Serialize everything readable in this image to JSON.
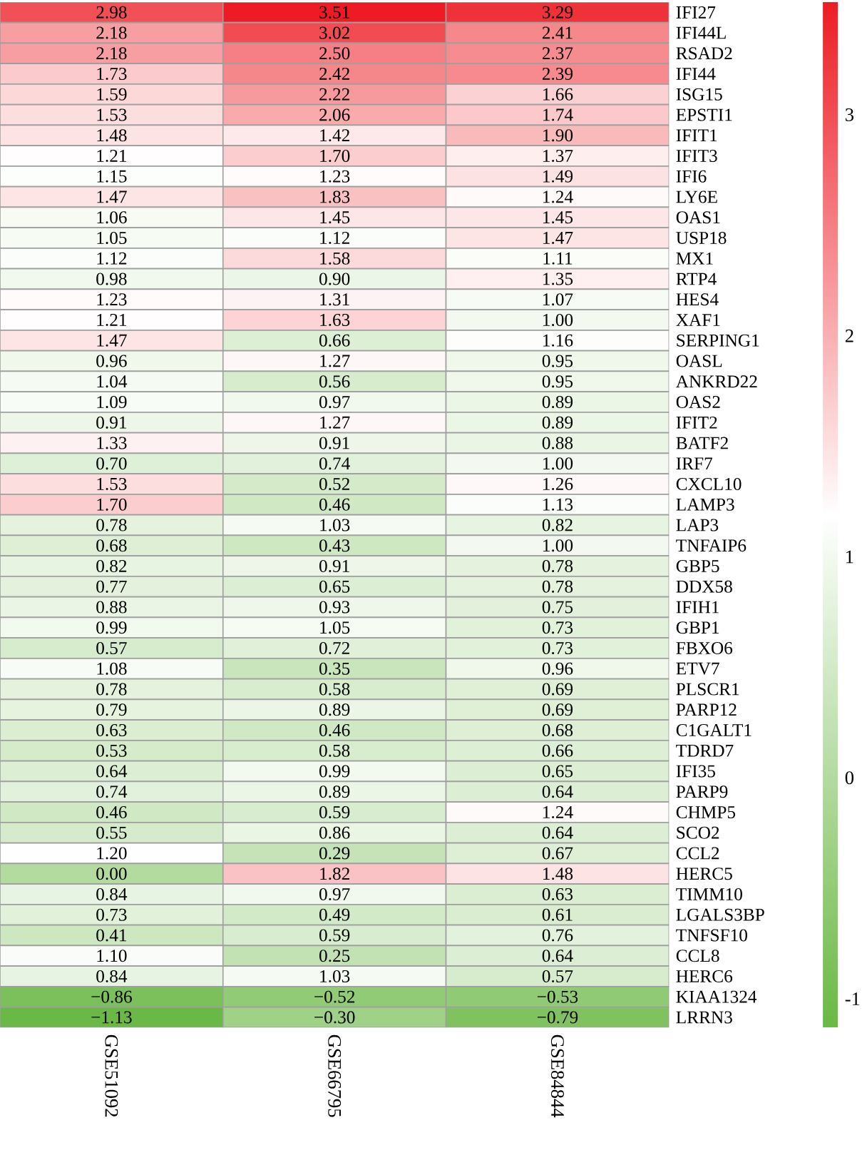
{
  "chart_data": {
    "type": "heatmap",
    "categories": [
      "GSE51092",
      "GSE66795",
      "GSE84844"
    ],
    "y_categories": [
      "IFI27",
      "IFI44L",
      "RSAD2",
      "IFI44",
      "ISG15",
      "EPSTI1",
      "IFIT1",
      "IFIT3",
      "IFI6",
      "LY6E",
      "OAS1",
      "USP18",
      "MX1",
      "RTP4",
      "HES4",
      "XAF1",
      "SERPING1",
      "OASL",
      "ANKRD22",
      "OAS2",
      "IFIT2",
      "BATF2",
      "IRF7",
      "CXCL10",
      "LAMP3",
      "LAP3",
      "TNFAIP6",
      "GBP5",
      "DDX58",
      "IFIH1",
      "GBP1",
      "FBXO6",
      "ETV7",
      "PLSCR1",
      "PARP12",
      "C1GALT1",
      "TDRD7",
      "IFI35",
      "PARP9",
      "CHMP5",
      "SCO2",
      "CCL2",
      "HERC5",
      "TIMM10",
      "LGALS3BP",
      "TNFSF10",
      "CCL8",
      "HERC6",
      "KIAA1324",
      "LRRN3"
    ],
    "cells": [
      [
        2.98,
        3.51,
        3.29
      ],
      [
        2.18,
        3.02,
        2.41
      ],
      [
        2.18,
        2.5,
        2.37
      ],
      [
        1.73,
        2.42,
        2.39
      ],
      [
        1.59,
        2.22,
        1.66
      ],
      [
        1.53,
        2.06,
        1.74
      ],
      [
        1.48,
        1.42,
        1.9
      ],
      [
        1.21,
        1.7,
        1.37
      ],
      [
        1.15,
        1.23,
        1.49
      ],
      [
        1.47,
        1.83,
        1.24
      ],
      [
        1.06,
        1.45,
        1.45
      ],
      [
        1.05,
        1.12,
        1.47
      ],
      [
        1.12,
        1.58,
        1.11
      ],
      [
        0.98,
        0.9,
        1.35
      ],
      [
        1.23,
        1.31,
        1.07
      ],
      [
        1.21,
        1.63,
        1.0
      ],
      [
        1.47,
        0.66,
        1.16
      ],
      [
        0.96,
        1.27,
        0.95
      ],
      [
        1.04,
        0.56,
        0.95
      ],
      [
        1.09,
        0.97,
        0.89
      ],
      [
        0.91,
        1.27,
        0.89
      ],
      [
        1.33,
        0.91,
        0.88
      ],
      [
        0.7,
        0.74,
        1.0
      ],
      [
        1.53,
        0.52,
        1.26
      ],
      [
        1.7,
        0.46,
        1.13
      ],
      [
        0.78,
        1.03,
        0.82
      ],
      [
        0.68,
        0.43,
        1.0
      ],
      [
        0.82,
        0.91,
        0.78
      ],
      [
        0.77,
        0.65,
        0.78
      ],
      [
        0.88,
        0.93,
        0.75
      ],
      [
        0.99,
        1.05,
        0.73
      ],
      [
        0.57,
        0.72,
        0.73
      ],
      [
        1.08,
        0.35,
        0.96
      ],
      [
        0.78,
        0.58,
        0.69
      ],
      [
        0.79,
        0.89,
        0.69
      ],
      [
        0.63,
        0.46,
        0.68
      ],
      [
        0.53,
        0.58,
        0.66
      ],
      [
        0.64,
        0.99,
        0.65
      ],
      [
        0.74,
        0.89,
        0.64
      ],
      [
        0.46,
        0.59,
        1.24
      ],
      [
        0.55,
        0.86,
        0.64
      ],
      [
        1.2,
        0.29,
        0.67
      ],
      [
        0.0,
        1.82,
        1.48
      ],
      [
        0.84,
        0.97,
        0.63
      ],
      [
        0.73,
        0.49,
        0.61
      ],
      [
        0.41,
        0.59,
        0.76
      ],
      [
        1.1,
        0.25,
        0.64
      ],
      [
        0.84,
        1.03,
        0.57
      ],
      [
        -0.86,
        -0.52,
        -0.53
      ],
      [
        -1.13,
        -0.3,
        -0.79
      ]
    ],
    "cell_labels": [
      [
        "2.98",
        "3.51",
        "3.29"
      ],
      [
        "2.18",
        "3.02",
        "2.41"
      ],
      [
        "2.18",
        "2.50",
        "2.37"
      ],
      [
        "1.73",
        "2.42",
        "2.39"
      ],
      [
        "1.59",
        "2.22",
        "1.66"
      ],
      [
        "1.53",
        "2.06",
        "1.74"
      ],
      [
        "1.48",
        "1.42",
        "1.90"
      ],
      [
        "1.21",
        "1.70",
        "1.37"
      ],
      [
        "1.15",
        "1.23",
        "1.49"
      ],
      [
        "1.47",
        "1.83",
        "1.24"
      ],
      [
        "1.06",
        "1.45",
        "1.45"
      ],
      [
        "1.05",
        "1.12",
        "1.47"
      ],
      [
        "1.12",
        "1.58",
        "1.11"
      ],
      [
        "0.98",
        "0.90",
        "1.35"
      ],
      [
        "1.23",
        "1.31",
        "1.07"
      ],
      [
        "1.21",
        "1.63",
        "1.00"
      ],
      [
        "1.47",
        "0.66",
        "1.16"
      ],
      [
        "0.96",
        "1.27",
        "0.95"
      ],
      [
        "1.04",
        "0.56",
        "0.95"
      ],
      [
        "1.09",
        "0.97",
        "0.89"
      ],
      [
        "0.91",
        "1.27",
        "0.89"
      ],
      [
        "1.33",
        "0.91",
        "0.88"
      ],
      [
        "0.70",
        "0.74",
        "1.00"
      ],
      [
        "1.53",
        "0.52",
        "1.26"
      ],
      [
        "1.70",
        "0.46",
        "1.13"
      ],
      [
        "0.78",
        "1.03",
        "0.82"
      ],
      [
        "0.68",
        "0.43",
        "1.00"
      ],
      [
        "0.82",
        "0.91",
        "0.78"
      ],
      [
        "0.77",
        "0.65",
        "0.78"
      ],
      [
        "0.88",
        "0.93",
        "0.75"
      ],
      [
        "0.99",
        "1.05",
        "0.73"
      ],
      [
        "0.57",
        "0.72",
        "0.73"
      ],
      [
        "1.08",
        "0.35",
        "0.96"
      ],
      [
        "0.78",
        "0.58",
        "0.69"
      ],
      [
        "0.79",
        "0.89",
        "0.69"
      ],
      [
        "0.63",
        "0.46",
        "0.68"
      ],
      [
        "0.53",
        "0.58",
        "0.66"
      ],
      [
        "0.64",
        "0.99",
        "0.65"
      ],
      [
        "0.74",
        "0.89",
        "0.64"
      ],
      [
        "0.46",
        "0.59",
        "1.24"
      ],
      [
        "0.55",
        "0.86",
        "0.64"
      ],
      [
        "1.20",
        "0.29",
        "0.67"
      ],
      [
        "0.00",
        "1.82",
        "1.48"
      ],
      [
        "0.84",
        "0.97",
        "0.63"
      ],
      [
        "0.73",
        "0.49",
        "0.61"
      ],
      [
        "0.41",
        "0.59",
        "0.76"
      ],
      [
        "1.10",
        "0.25",
        "0.64"
      ],
      [
        "0.84",
        "1.03",
        "0.57"
      ],
      [
        "−0.86",
        "−0.52",
        "−0.53"
      ],
      [
        "−1.13",
        "−0.30",
        "−0.79"
      ]
    ],
    "clim": [
      -1.13,
      3.51
    ],
    "cticks": [
      -1,
      0,
      1,
      2,
      3
    ]
  }
}
